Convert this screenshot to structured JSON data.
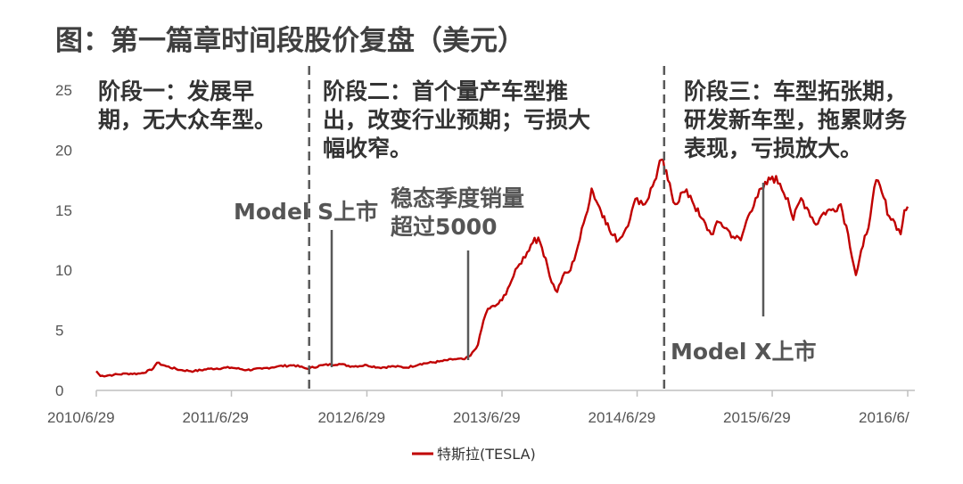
{
  "title": "图：第一篇章时间段股价复盘（美元）",
  "colors": {
    "series": "#c00000",
    "axis": "#bfbfbf",
    "divider": "#595959",
    "pointer": "#595959"
  },
  "chart_data": {
    "type": "line",
    "ylim": [
      0,
      25
    ],
    "yticks": [
      0,
      5,
      10,
      15,
      20,
      25
    ],
    "xlim": [
      "2010-06-29",
      "2016-06-29"
    ],
    "xticks": [
      "2010/6/29",
      "2011/6/29",
      "2012/6/29",
      "2013/6/29",
      "2014/6/29",
      "2015/6/29",
      "2016/6/"
    ],
    "series": [
      {
        "name": "特斯拉(TESLA)",
        "points": [
          [
            "2010-06-29",
            1.6
          ],
          [
            "2010-07-10",
            1.2
          ],
          [
            "2010-08-15",
            1.3
          ],
          [
            "2010-09-20",
            1.4
          ],
          [
            "2010-10-25",
            1.4
          ],
          [
            "2010-11-25",
            1.7
          ],
          [
            "2010-12-10",
            2.3
          ],
          [
            "2011-01-05",
            2.0
          ],
          [
            "2011-02-10",
            1.7
          ],
          [
            "2011-03-20",
            1.6
          ],
          [
            "2011-05-01",
            1.8
          ],
          [
            "2011-06-29",
            1.9
          ],
          [
            "2011-08-10",
            1.7
          ],
          [
            "2011-09-20",
            1.8
          ],
          [
            "2011-11-01",
            2.0
          ],
          [
            "2011-12-15",
            2.1
          ],
          [
            "2012-01-20",
            1.8
          ],
          [
            "2012-03-01",
            2.1
          ],
          [
            "2012-04-15",
            2.2
          ],
          [
            "2012-05-20",
            2.0
          ],
          [
            "2012-06-29",
            2.1
          ],
          [
            "2012-08-01",
            1.9
          ],
          [
            "2012-09-10",
            2.0
          ],
          [
            "2012-10-15",
            1.9
          ],
          [
            "2012-11-20",
            2.2
          ],
          [
            "2013-01-10",
            2.4
          ],
          [
            "2013-02-20",
            2.6
          ],
          [
            "2013-03-20",
            2.6
          ],
          [
            "2013-04-05",
            2.9
          ],
          [
            "2013-04-25",
            3.8
          ],
          [
            "2013-05-10",
            5.8
          ],
          [
            "2013-05-22",
            6.8
          ],
          [
            "2013-06-10",
            7.0
          ],
          [
            "2013-06-29",
            7.5
          ],
          [
            "2013-07-15",
            8.5
          ],
          [
            "2013-07-30",
            9.5
          ],
          [
            "2013-08-15",
            10.5
          ],
          [
            "2013-09-05",
            11.5
          ],
          [
            "2013-09-25",
            12.7
          ],
          [
            "2013-10-10",
            12.3
          ],
          [
            "2013-10-25",
            11.0
          ],
          [
            "2013-11-10",
            9.0
          ],
          [
            "2013-11-25",
            8.2
          ],
          [
            "2013-12-10",
            9.5
          ],
          [
            "2013-12-31",
            10.0
          ],
          [
            "2014-01-20",
            12.0
          ],
          [
            "2014-02-10",
            14.5
          ],
          [
            "2014-02-26",
            16.8
          ],
          [
            "2014-03-15",
            15.5
          ],
          [
            "2014-04-01",
            14.5
          ],
          [
            "2014-04-20",
            13.0
          ],
          [
            "2014-05-10",
            12.5
          ],
          [
            "2014-05-30",
            13.5
          ],
          [
            "2014-06-15",
            15.0
          ],
          [
            "2014-06-29",
            16.0
          ],
          [
            "2014-07-20",
            15.5
          ],
          [
            "2014-08-10",
            17.0
          ],
          [
            "2014-09-03",
            19.2
          ],
          [
            "2014-09-20",
            17.5
          ],
          [
            "2014-10-10",
            15.5
          ],
          [
            "2014-10-30",
            16.5
          ],
          [
            "2014-11-20",
            16.2
          ],
          [
            "2014-12-15",
            14.5
          ],
          [
            "2015-01-15",
            13.0
          ],
          [
            "2015-02-05",
            14.0
          ],
          [
            "2015-02-25",
            13.5
          ],
          [
            "2015-03-15",
            12.8
          ],
          [
            "2015-04-05",
            12.5
          ],
          [
            "2015-04-25",
            14.5
          ],
          [
            "2015-05-15",
            16.0
          ],
          [
            "2015-06-05",
            16.8
          ],
          [
            "2015-06-29",
            17.8
          ],
          [
            "2015-07-20",
            17.2
          ],
          [
            "2015-08-10",
            16.0
          ],
          [
            "2015-08-25",
            14.2
          ],
          [
            "2015-09-15",
            16.0
          ],
          [
            "2015-10-05",
            15.0
          ],
          [
            "2015-10-25",
            13.8
          ],
          [
            "2015-11-15",
            14.8
          ],
          [
            "2015-12-05",
            15.0
          ],
          [
            "2015-12-31",
            15.5
          ],
          [
            "2016-01-20",
            13.0
          ],
          [
            "2016-02-10",
            9.6
          ],
          [
            "2016-02-29",
            12.0
          ],
          [
            "2016-03-20",
            14.5
          ],
          [
            "2016-04-05",
            17.5
          ],
          [
            "2016-04-20",
            16.5
          ],
          [
            "2016-05-10",
            14.5
          ],
          [
            "2016-05-25",
            14.0
          ],
          [
            "2016-06-10",
            13.0
          ],
          [
            "2016-06-20",
            15.0
          ],
          [
            "2016-06-29",
            15.3
          ]
        ]
      }
    ],
    "phase_dividers": [
      "2012-01-25",
      "2014-09-10"
    ],
    "phase_labels": [
      {
        "lines": [
          "阶段一：发展早",
          "期，无大众车型。"
        ]
      },
      {
        "lines": [
          "阶段二：首个量产车型推",
          "出，改变行业预期；亏损大",
          "幅收窄。"
        ]
      },
      {
        "lines": [
          "阶段三：车型拓张期，",
          "研发新车型，拖累财务",
          "表现，亏损放大。"
        ]
      }
    ],
    "annotations": [
      {
        "lines": [
          "Model S上市"
        ],
        "date": "2012-06-22"
      },
      {
        "lines": [
          "稳态季度销量",
          "超过5000"
        ],
        "date": "2013-03-15"
      },
      {
        "lines": [
          "Model X上市"
        ],
        "date": "2015-09-29"
      }
    ],
    "legend": {
      "label": "特斯拉(TESLA)",
      "position": "bottom"
    },
    "grid": false
  }
}
